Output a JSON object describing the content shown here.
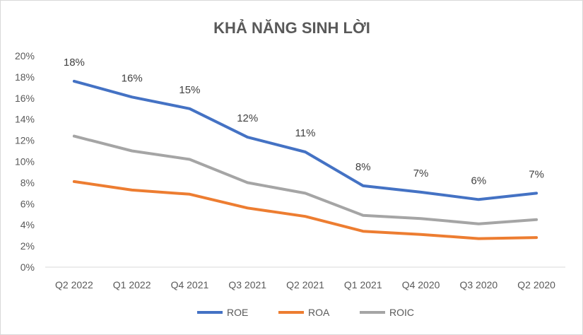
{
  "chart_data": {
    "type": "line",
    "title": "KHẢ NĂNG SINH LỜI",
    "categories": [
      "Q2 2022",
      "Q1 2022",
      "Q4 2021",
      "Q3 2021",
      "Q2 2021",
      "Q1 2021",
      "Q4 2020",
      "Q3 2020",
      "Q2 2020"
    ],
    "ylim": [
      0,
      20
    ],
    "y_ticks": [
      "0%",
      "2%",
      "4%",
      "6%",
      "8%",
      "10%",
      "12%",
      "14%",
      "16%",
      "18%",
      "20%"
    ],
    "grid": false,
    "legend_position": "bottom",
    "series": [
      {
        "name": "ROE",
        "color": "#4472C4",
        "values": [
          17.6,
          16.1,
          15.0,
          12.3,
          10.9,
          7.7,
          7.1,
          6.4,
          7.0
        ],
        "labels": [
          "18%",
          "16%",
          "15%",
          "12%",
          "11%",
          "8%",
          "7%",
          "6%",
          "7%"
        ]
      },
      {
        "name": "ROA",
        "color": "#ED7D31",
        "values": [
          8.1,
          7.3,
          6.9,
          5.6,
          4.8,
          3.4,
          3.1,
          2.7,
          2.8
        ]
      },
      {
        "name": "ROIC",
        "color": "#A5A5A5",
        "values": [
          12.4,
          11.0,
          10.2,
          8.0,
          7.0,
          4.9,
          4.6,
          4.1,
          4.5
        ]
      }
    ]
  }
}
